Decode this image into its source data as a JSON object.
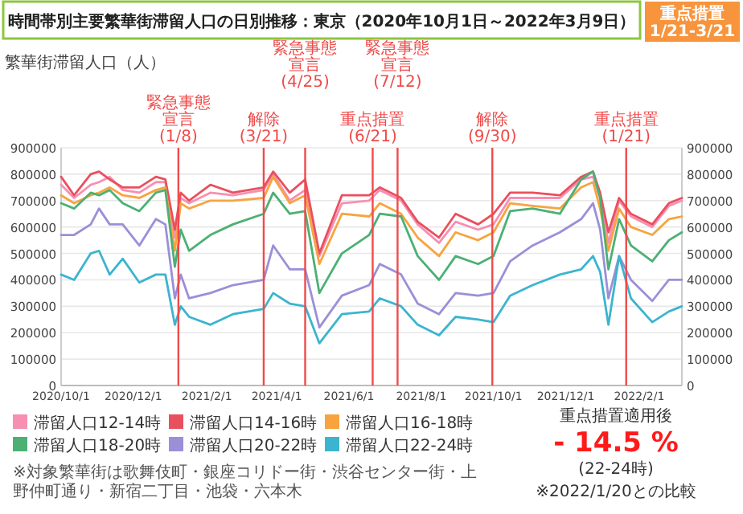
{
  "chart_data": {
    "type": "line",
    "title": "時間帯別主要繁華街滞留人口の日別推移：東京（2020年10月1日～2022年3月9日）",
    "ylabel": "繁華街滞留人口（人）",
    "x": [
      "2020-10-01",
      "2020-10-12",
      "2020-10-26",
      "2020-11-02",
      "2020-11-11",
      "2020-11-22",
      "2020-12-06",
      "2020-12-20",
      "2020-12-28",
      "2021-01-05",
      "2021-01-10",
      "2021-01-17",
      "2021-02-04",
      "2021-02-23",
      "2021-03-21",
      "2021-03-29",
      "2021-04-12",
      "2021-04-25",
      "2021-05-07",
      "2021-05-26",
      "2021-06-18",
      "2021-06-27",
      "2021-07-15",
      "2021-07-29",
      "2021-08-16",
      "2021-08-30",
      "2021-09-18",
      "2021-10-01",
      "2021-10-15",
      "2021-11-03",
      "2021-11-26",
      "2021-12-14",
      "2021-12-24",
      "2021-12-30",
      "2022-01-06",
      "2022-01-15",
      "2022-01-25",
      "2022-02-12",
      "2022-02-26",
      "2022-03-09"
    ],
    "series": [
      {
        "name": "滞留人口12-14時",
        "color": "#f78fb3",
        "values": [
          760000,
          710000,
          760000,
          770000,
          790000,
          740000,
          730000,
          770000,
          770000,
          560000,
          710000,
          690000,
          730000,
          720000,
          740000,
          800000,
          700000,
          740000,
          490000,
          690000,
          700000,
          740000,
          700000,
          610000,
          540000,
          620000,
          590000,
          610000,
          710000,
          710000,
          710000,
          780000,
          790000,
          710000,
          540000,
          700000,
          640000,
          600000,
          680000,
          700000
        ]
      },
      {
        "name": "滞留人口14-16時",
        "color": "#e9505e",
        "values": [
          790000,
          720000,
          800000,
          810000,
          780000,
          750000,
          750000,
          790000,
          780000,
          590000,
          730000,
          700000,
          760000,
          730000,
          750000,
          810000,
          730000,
          780000,
          500000,
          720000,
          720000,
          750000,
          710000,
          620000,
          560000,
          650000,
          610000,
          650000,
          730000,
          730000,
          720000,
          790000,
          810000,
          730000,
          580000,
          710000,
          650000,
          610000,
          690000,
          710000
        ]
      },
      {
        "name": "滞留人口16-18時",
        "color": "#f7a440",
        "values": [
          720000,
          690000,
          720000,
          730000,
          750000,
          720000,
          710000,
          740000,
          750000,
          510000,
          690000,
          670000,
          700000,
          700000,
          710000,
          790000,
          690000,
          720000,
          460000,
          650000,
          640000,
          690000,
          650000,
          560000,
          490000,
          580000,
          550000,
          580000,
          690000,
          680000,
          670000,
          750000,
          770000,
          670000,
          510000,
          670000,
          600000,
          570000,
          630000,
          640000
        ]
      },
      {
        "name": "滞留人口18-20時",
        "color": "#4cb074",
        "values": [
          690000,
          670000,
          730000,
          720000,
          740000,
          690000,
          660000,
          730000,
          740000,
          450000,
          590000,
          510000,
          570000,
          610000,
          650000,
          730000,
          650000,
          660000,
          350000,
          500000,
          570000,
          650000,
          640000,
          490000,
          400000,
          490000,
          460000,
          490000,
          660000,
          670000,
          650000,
          780000,
          810000,
          710000,
          440000,
          630000,
          530000,
          470000,
          550000,
          580000
        ]
      },
      {
        "name": "滞留人口20-22時",
        "color": "#9b8fd8",
        "values": [
          570000,
          570000,
          610000,
          670000,
          610000,
          610000,
          530000,
          630000,
          610000,
          330000,
          420000,
          330000,
          350000,
          380000,
          400000,
          530000,
          440000,
          440000,
          220000,
          340000,
          380000,
          460000,
          420000,
          310000,
          270000,
          350000,
          340000,
          350000,
          470000,
          530000,
          580000,
          630000,
          690000,
          590000,
          330000,
          490000,
          400000,
          320000,
          400000,
          400000
        ]
      },
      {
        "name": "滞留人口22-24時",
        "color": "#3cb4cf",
        "values": [
          420000,
          400000,
          500000,
          510000,
          420000,
          480000,
          390000,
          420000,
          420000,
          230000,
          300000,
          260000,
          230000,
          270000,
          290000,
          350000,
          310000,
          300000,
          160000,
          270000,
          280000,
          330000,
          300000,
          230000,
          190000,
          260000,
          250000,
          240000,
          340000,
          380000,
          420000,
          440000,
          490000,
          430000,
          230000,
          490000,
          330000,
          240000,
          280000,
          300000
        ]
      }
    ],
    "xlim": [
      "2020-10-01",
      "2022-03-09"
    ],
    "xticks": [
      {
        "value": "2020-10-01",
        "label": "2020/10/1"
      },
      {
        "value": "2020-12-01",
        "label": "2020/12/1"
      },
      {
        "value": "2021-02-01",
        "label": "2021/2/1"
      },
      {
        "value": "2021-04-01",
        "label": "2021/4/1"
      },
      {
        "value": "2021-06-01",
        "label": "2021/6/1"
      },
      {
        "value": "2021-08-01",
        "label": "2021/8/1"
      },
      {
        "value": "2021-10-01",
        "label": "2021/10/1"
      },
      {
        "value": "2021-12-01",
        "label": "2021/12/1"
      },
      {
        "value": "2022-02-01",
        "label": "2022/2/1"
      }
    ],
    "ylim": [
      0,
      900000
    ],
    "yticks": [
      0,
      100000,
      200000,
      300000,
      400000,
      500000,
      600000,
      700000,
      800000,
      900000
    ],
    "y2lim": [
      0,
      900000
    ],
    "y2ticks": [
      0,
      100000,
      200000,
      300000,
      400000,
      500000,
      600000,
      700000,
      800000,
      900000
    ],
    "grid": "y",
    "legend": "bottom",
    "ref_lines": [
      {
        "axis": "x",
        "value": "2021-01-08",
        "label": "緊急事態宣言(1/8)",
        "color": "#f04a4a"
      },
      {
        "axis": "x",
        "value": "2021-03-21",
        "label": "解除(3/21)",
        "color": "#f04a4a"
      },
      {
        "axis": "x",
        "value": "2021-04-25",
        "label": "緊急事態宣言(4/25)",
        "color": "#f04a4a"
      },
      {
        "axis": "x",
        "value": "2021-06-21",
        "label": "重点措置(6/21)",
        "color": "#f04a4a"
      },
      {
        "axis": "x",
        "value": "2021-07-12",
        "label": "緊急事態宣言(7/12)",
        "color": "#f04a4a"
      },
      {
        "axis": "x",
        "value": "2021-09-30",
        "label": "解除(9/30)",
        "color": "#f04a4a"
      },
      {
        "axis": "x",
        "value": "2022-01-21",
        "label": "重点措置(1/21)",
        "color": "#f04a4a"
      }
    ],
    "annotations": [
      "重点措置\n1/21-3/21",
      "重点措置適用後",
      "- 14.5 %",
      "(22-24時)",
      "※2022/1/20との比較",
      "※対象繁華街は歌舞伎町・銀座コリドー街・渋谷センター街・上野仲町通り・新宿二丁目・池袋・六本木"
    ]
  }
}
